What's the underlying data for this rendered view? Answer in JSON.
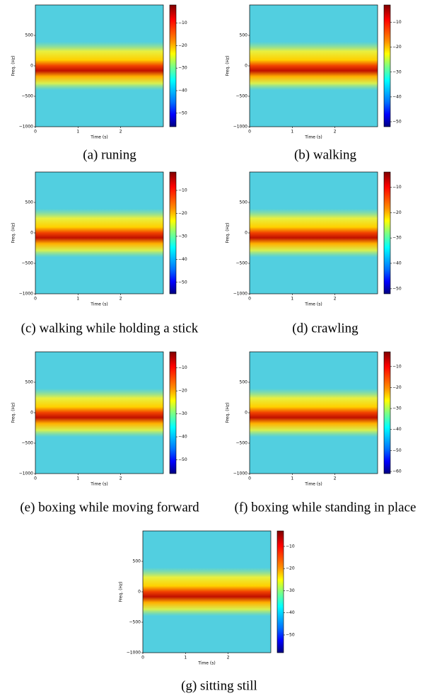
{
  "chart_data": [
    {
      "type": "spectrogram",
      "caption": "(a) runing",
      "xlabel": "Time (s)",
      "ylabel": "Freq. (Hz)",
      "colormap": "jet",
      "xlim": [
        0,
        3
      ],
      "xticks": [
        0,
        1,
        2
      ],
      "ylim": [
        -1000,
        1000
      ],
      "yticks": [
        {
          "value": -1000,
          "label": "−1000"
        },
        {
          "value": -500,
          "label": "−500"
        },
        0,
        500
      ],
      "clim": [
        -56,
        -2
      ],
      "cticks": [
        {
          "value": -50,
          "label": "−50"
        },
        {
          "value": -40,
          "label": "−40"
        },
        {
          "value": -30,
          "label": "−30"
        },
        {
          "value": -20,
          "label": "−20"
        },
        {
          "value": -10,
          "label": "−10"
        }
      ]
    },
    {
      "type": "spectrogram",
      "caption": "(b) walking",
      "xlabel": "Time (s)",
      "ylabel": "Freq. (Hz)",
      "colormap": "jet",
      "xlim": [
        0,
        3
      ],
      "xticks": [
        0,
        1,
        2
      ],
      "ylim": [
        -1000,
        1000
      ],
      "yticks": [
        {
          "value": -1000,
          "label": "−1000"
        },
        {
          "value": -500,
          "label": "−500"
        },
        0,
        500
      ],
      "clim": [
        -52,
        -3
      ],
      "cticks": [
        {
          "value": -50,
          "label": "−50"
        },
        {
          "value": -40,
          "label": "−40"
        },
        {
          "value": -30,
          "label": "−30"
        },
        {
          "value": -20,
          "label": "−20"
        },
        {
          "value": -10,
          "label": "−10"
        }
      ]
    },
    {
      "type": "spectrogram",
      "caption": "(c) walking while holding a stick",
      "xlabel": "Time (s)",
      "ylabel": "Freq. (Hz)",
      "colormap": "jet",
      "xlim": [
        0,
        3
      ],
      "xticks": [
        0,
        1,
        2
      ],
      "ylim": [
        -1000,
        1000
      ],
      "yticks": [
        {
          "value": -1000,
          "label": "−1000"
        },
        {
          "value": -500,
          "label": "−500"
        },
        0,
        500
      ],
      "clim": [
        -55,
        -2
      ],
      "cticks": [
        {
          "value": -50,
          "label": "−50"
        },
        {
          "value": -40,
          "label": "−40"
        },
        {
          "value": -30,
          "label": "−30"
        },
        {
          "value": -20,
          "label": "−20"
        },
        {
          "value": -10,
          "label": "−10"
        }
      ]
    },
    {
      "type": "spectrogram",
      "caption": "(d) crawling",
      "xlabel": "Time (s)",
      "ylabel": "Freq. (Hz)",
      "colormap": "jet",
      "xlim": [
        0,
        3
      ],
      "xticks": [
        0,
        1,
        2
      ],
      "ylim": [
        -1000,
        1000
      ],
      "yticks": [
        {
          "value": -1000,
          "label": "−1000"
        },
        {
          "value": -500,
          "label": "−500"
        },
        0,
        500
      ],
      "clim": [
        -52,
        -4
      ],
      "cticks": [
        {
          "value": -50,
          "label": "−50"
        },
        {
          "value": -40,
          "label": "−40"
        },
        {
          "value": -30,
          "label": "−30"
        },
        {
          "value": -20,
          "label": "−20"
        },
        {
          "value": -10,
          "label": "−10"
        }
      ]
    },
    {
      "type": "spectrogram",
      "caption": "(e) boxing while moving forward",
      "xlabel": "Time (s)",
      "ylabel": "Freq. (Hz)",
      "colormap": "jet",
      "xlim": [
        0,
        3
      ],
      "xticks": [
        0,
        1,
        2
      ],
      "ylim": [
        -1000,
        1000
      ],
      "yticks": [
        {
          "value": -1000,
          "label": "−1000"
        },
        {
          "value": -500,
          "label": "−500"
        },
        0,
        500
      ],
      "clim": [
        -56,
        -3
      ],
      "cticks": [
        {
          "value": -50,
          "label": "−50"
        },
        {
          "value": -40,
          "label": "−40"
        },
        {
          "value": -30,
          "label": "−30"
        },
        {
          "value": -20,
          "label": "−20"
        },
        {
          "value": -10,
          "label": "−10"
        }
      ]
    },
    {
      "type": "spectrogram",
      "caption": "(f) boxing while standing in place",
      "xlabel": "Time (s)",
      "ylabel": "Freq. (Hz)",
      "colormap": "jet",
      "xlim": [
        0,
        3
      ],
      "xticks": [
        0,
        1,
        2
      ],
      "ylim": [
        -1000,
        1000
      ],
      "yticks": [
        {
          "value": -1000,
          "label": "−1000"
        },
        {
          "value": -500,
          "label": "−500"
        },
        0,
        500
      ],
      "clim": [
        -61,
        -3
      ],
      "cticks": [
        {
          "value": -60,
          "label": "−60"
        },
        {
          "value": -50,
          "label": "−50"
        },
        {
          "value": -40,
          "label": "−40"
        },
        {
          "value": -30,
          "label": "−30"
        },
        {
          "value": -20,
          "label": "−20"
        },
        {
          "value": -10,
          "label": "−10"
        }
      ]
    },
    {
      "type": "spectrogram",
      "caption": "(g) sitting still",
      "xlabel": "Time (s)",
      "ylabel": "Freq. (Hz)",
      "colormap": "jet",
      "xlim": [
        0,
        3
      ],
      "xticks": [
        0,
        1,
        2
      ],
      "ylim": [
        -1000,
        1000
      ],
      "yticks": [
        {
          "value": -1000,
          "label": "−1000"
        },
        {
          "value": -500,
          "label": "−500"
        },
        0,
        500
      ],
      "clim": [
        -58,
        -3
      ],
      "cticks": [
        {
          "value": -50,
          "label": "−50"
        },
        {
          "value": -40,
          "label": "−40"
        },
        {
          "value": -30,
          "label": "−30"
        },
        {
          "value": -20,
          "label": "−20"
        },
        {
          "value": -10,
          "label": "−10"
        }
      ]
    }
  ]
}
